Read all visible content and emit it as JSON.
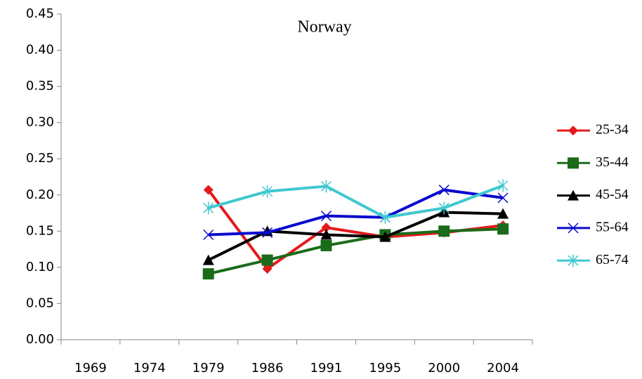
{
  "chart_data": {
    "type": "line",
    "title": "Norway",
    "categories": [
      "1969",
      "1974",
      "1979",
      "1986",
      "1991",
      "1995",
      "2000",
      "2004"
    ],
    "series": [
      {
        "name": "25-34",
        "color": "#e31a1c",
        "marker": "diamond",
        "values": [
          null,
          null,
          0.207,
          0.098,
          0.155,
          0.142,
          0.148,
          0.158
        ]
      },
      {
        "name": "35-44",
        "color": "#1a6b1a",
        "marker": "square",
        "values": [
          null,
          null,
          0.091,
          0.11,
          0.13,
          0.145,
          0.15,
          0.153
        ]
      },
      {
        "name": "45-54",
        "color": "#000000",
        "marker": "triangle",
        "values": [
          null,
          null,
          0.11,
          0.15,
          0.145,
          0.142,
          0.176,
          0.174
        ]
      },
      {
        "name": "55-64",
        "color": "#0a0ad0",
        "marker": "x",
        "values": [
          null,
          null,
          0.145,
          0.148,
          0.171,
          0.169,
          0.207,
          0.196
        ]
      },
      {
        "name": "65-74",
        "color": "#40c8d0",
        "marker": "star",
        "values": [
          null,
          null,
          0.182,
          0.205,
          0.212,
          0.169,
          0.182,
          0.213
        ]
      }
    ],
    "ylim": [
      0,
      0.45
    ],
    "yticks": [
      {
        "value": 0,
        "label": "0.00"
      },
      {
        "value": 0.05,
        "label": "0.05"
      },
      {
        "value": 0.1,
        "label": "0.10"
      },
      {
        "value": 0.15,
        "label": "0.15"
      },
      {
        "value": 0.2,
        "label": "0.20"
      },
      {
        "value": 0.25,
        "label": "0.25"
      },
      {
        "value": 0.3,
        "label": "0.30"
      },
      {
        "value": 0.35,
        "label": "0.35"
      },
      {
        "value": 0.4,
        "label": "0.40"
      },
      {
        "value": 0.45,
        "label": "0.45"
      }
    ],
    "legend": "right",
    "grid": false
  }
}
